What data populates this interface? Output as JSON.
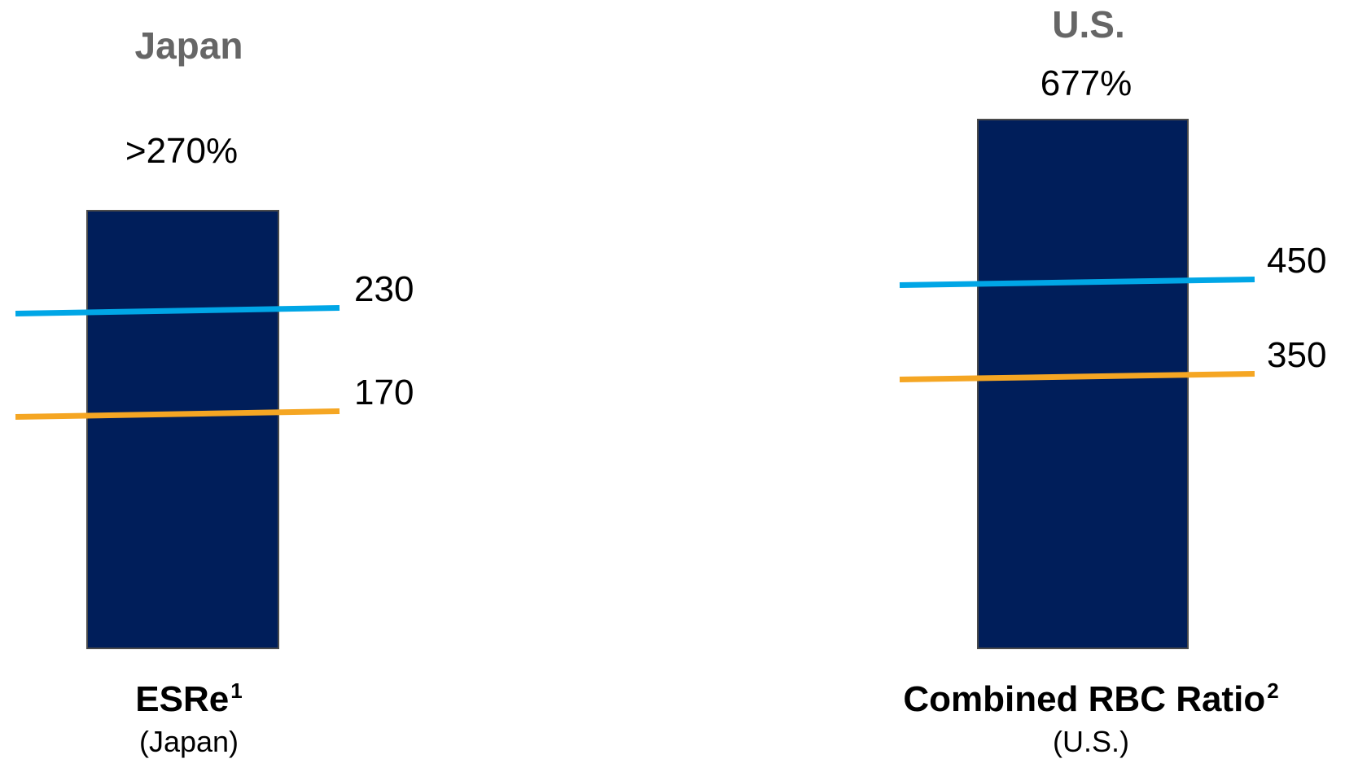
{
  "chart_data": [
    {
      "type": "bar",
      "title": "Japan",
      "categories": [
        "ESRe"
      ],
      "category_superscript": "1",
      "category_sublabel": "(Japan)",
      "values": [
        270
      ],
      "value_label": ">270%",
      "thresholds": [
        {
          "value": 230,
          "label": "230",
          "color": "#00a6e6"
        },
        {
          "value": 170,
          "label": "170",
          "color": "#f5a623"
        }
      ],
      "bar_color": "#001e5a",
      "grid": false,
      "legend": "none"
    },
    {
      "type": "bar",
      "title": "U.S.",
      "categories": [
        "Combined RBC Ratio"
      ],
      "category_superscript": "2",
      "category_sublabel": "(U.S.)",
      "values": [
        677
      ],
      "value_label": "677%",
      "thresholds": [
        {
          "value": 450,
          "label": "450",
          "color": "#00a6e6"
        },
        {
          "value": 350,
          "label": "350",
          "color": "#f5a623"
        }
      ],
      "bar_color": "#001e5a",
      "grid": false,
      "legend": "none"
    }
  ],
  "colors": {
    "bar": "#001e5a",
    "bar_border": "#4a4a4a",
    "title": "#666666",
    "text": "#000000",
    "threshold_high": "#00a6e6",
    "threshold_low": "#f5a623"
  }
}
